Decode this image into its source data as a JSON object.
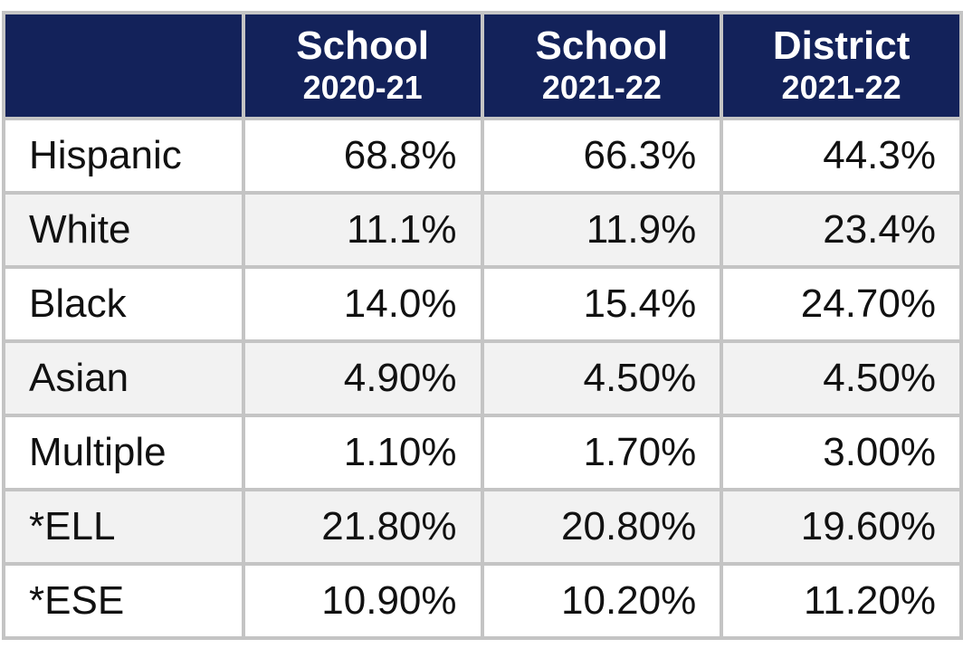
{
  "table": {
    "columns": [
      {
        "title": "School",
        "year": "2020-21"
      },
      {
        "title": "School",
        "year": "2021-22"
      },
      {
        "title": "District",
        "year": "2021-22"
      }
    ],
    "rows": [
      {
        "label": "Hispanic",
        "cells": [
          "68.8%",
          "66.3%",
          "44.3%"
        ]
      },
      {
        "label": "White",
        "cells": [
          "11.1%",
          "11.9%",
          "23.4%"
        ]
      },
      {
        "label": "Black",
        "cells": [
          "14.0%",
          "15.4%",
          "24.70%"
        ]
      },
      {
        "label": "Asian",
        "cells": [
          "4.90%",
          "4.50%",
          "4.50%"
        ]
      },
      {
        "label": "Multiple",
        "cells": [
          "1.10%",
          "1.70%",
          "3.00%"
        ]
      },
      {
        "label": "*ELL",
        "cells": [
          "21.80%",
          "20.80%",
          "19.60%"
        ]
      },
      {
        "label": "*ESE",
        "cells": [
          "10.90%",
          "10.20%",
          "11.20%"
        ]
      }
    ]
  }
}
